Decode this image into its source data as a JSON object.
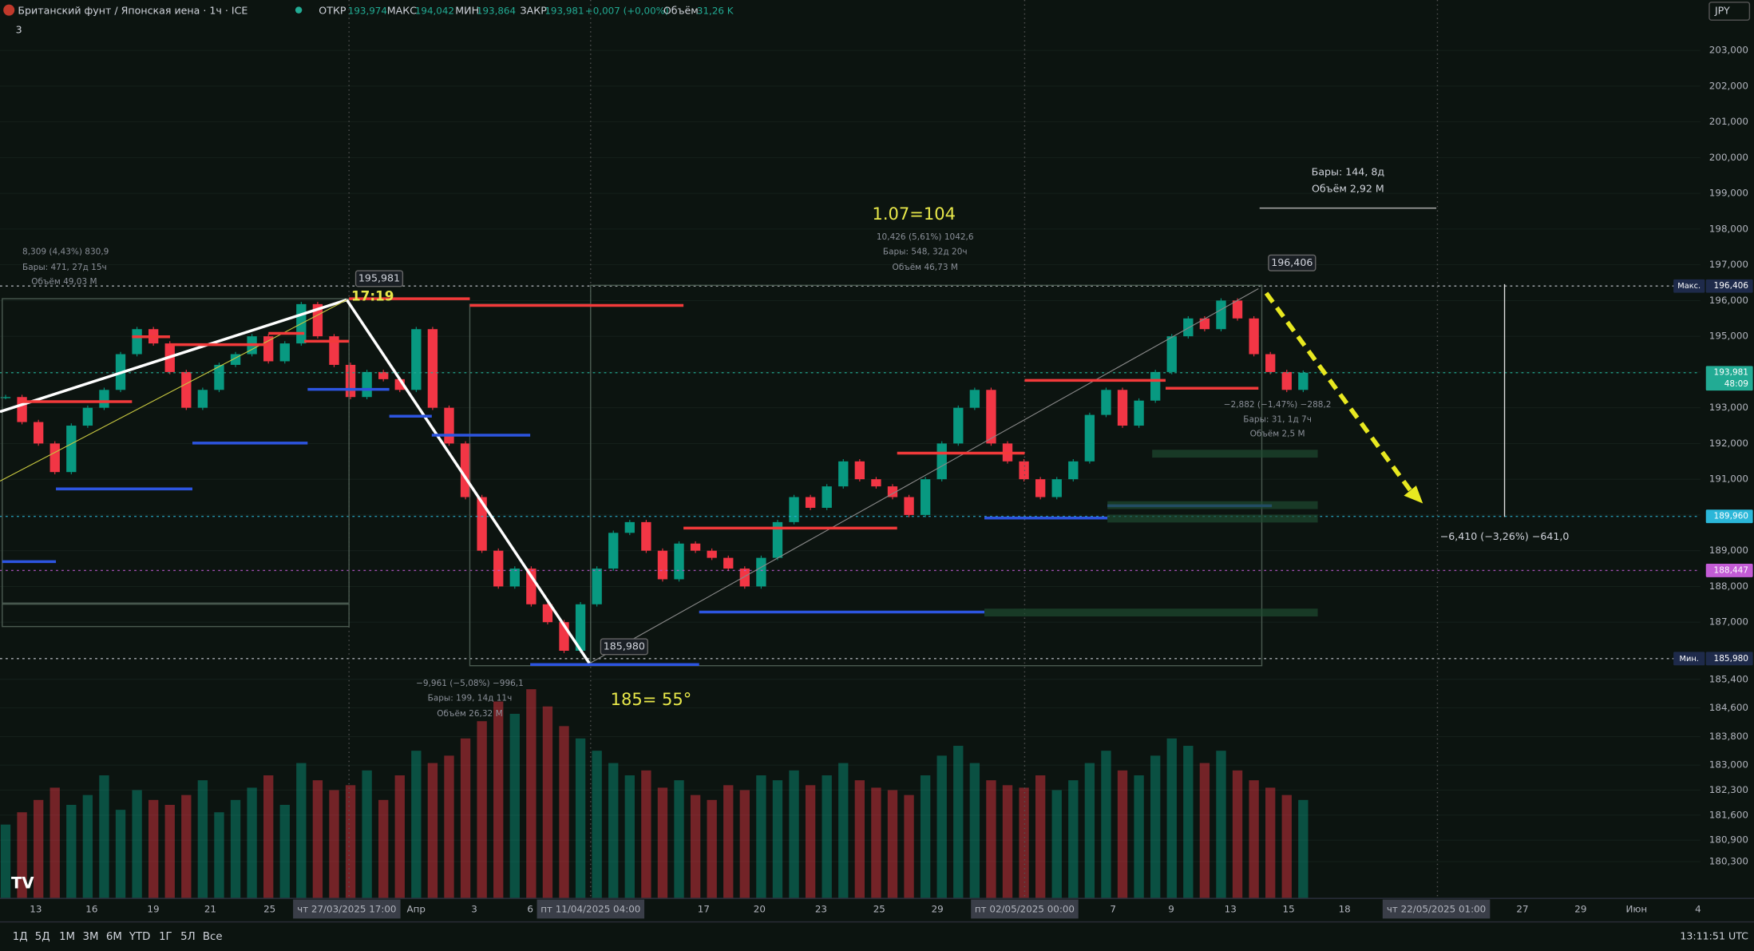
{
  "header": {
    "symbol": "Британский фунт / Японская иена · 1ч · ICE",
    "open_label": "ОТКР",
    "open": "193,974",
    "high_label": "МАКС",
    "high": "194,042",
    "low_label": "МИН",
    "low": "193,864",
    "close_label": "ЗАКР",
    "close": "193,981",
    "change": "+0,007 (+0,00%)",
    "volume_label": "Объём",
    "volume": "31,26 K",
    "indicators_count": "3",
    "currency": "JPY"
  },
  "chart_data": {
    "type": "candlestick",
    "closes": [
      193.3,
      192.6,
      192.0,
      191.2,
      192.5,
      193.0,
      193.5,
      194.5,
      195.2,
      194.8,
      194.0,
      193.0,
      193.5,
      194.2,
      194.5,
      195.0,
      194.3,
      194.8,
      195.9,
      195.0,
      194.2,
      193.3,
      194.0,
      193.8,
      193.5,
      195.2,
      193.0,
      192.0,
      190.5,
      189.0,
      188.0,
      188.5,
      187.5,
      187.0,
      186.2,
      187.5,
      188.5,
      189.5,
      189.8,
      189.0,
      188.2,
      189.2,
      189.0,
      188.8,
      188.5,
      188.0,
      188.8,
      189.8,
      190.5,
      190.2,
      190.8,
      191.5,
      191.0,
      190.8,
      190.5,
      190.0,
      191.0,
      192.0,
      193.0,
      193.5,
      192.0,
      191.5,
      191.0,
      190.5,
      191.0,
      191.5,
      192.8,
      193.5,
      192.5,
      193.2,
      194.0,
      195.0,
      195.5,
      195.2,
      196.0,
      195.5,
      194.5,
      194.0,
      193.5,
      193.981
    ],
    "volumes": [
      30,
      35,
      40,
      45,
      38,
      42,
      50,
      36,
      44,
      40,
      38,
      42,
      48,
      35,
      40,
      45,
      50,
      38,
      55,
      48,
      44,
      46,
      52,
      40,
      50,
      60,
      55,
      58,
      65,
      72,
      80,
      75,
      85,
      78,
      70,
      65,
      60,
      55,
      50,
      52,
      45,
      48,
      42,
      40,
      46,
      44,
      50,
      48,
      52,
      46,
      50,
      55,
      48,
      45,
      44,
      42,
      50,
      58,
      62,
      55,
      48,
      46,
      45,
      50,
      44,
      48,
      55,
      60,
      52,
      50,
      58,
      65,
      62,
      55,
      60,
      52,
      48,
      45,
      42,
      40
    ],
    "ylim": [
      179.27,
      204.41
    ],
    "volume_lim": [
      0,
      100
    ],
    "yticks": [
      {
        "value": 203,
        "label": "203,000"
      },
      {
        "value": 202,
        "label": "202,000"
      },
      {
        "value": 201,
        "label": "201,000"
      },
      {
        "value": 200,
        "label": "200,000"
      },
      {
        "value": 199,
        "label": "199,000"
      },
      {
        "value": 198,
        "label": "198,000"
      },
      {
        "value": 197,
        "label": "197,000"
      },
      {
        "value": 196,
        "label": "196,000"
      },
      {
        "value": 195,
        "label": "195,000"
      },
      {
        "value": 194,
        "label": "194,000"
      },
      {
        "value": 193,
        "label": "193,000"
      },
      {
        "value": 192,
        "label": "192,000"
      },
      {
        "value": 191,
        "label": "191,000"
      },
      {
        "value": 190,
        "label": "190,000"
      },
      {
        "value": 189,
        "label": "189,000"
      },
      {
        "value": 188,
        "label": "188,000"
      },
      {
        "value": 187,
        "label": "187,000"
      },
      {
        "value": 185.4,
        "label": "185,400"
      },
      {
        "value": 184.6,
        "label": "184,600"
      },
      {
        "value": 183.8,
        "label": "183,800"
      },
      {
        "value": 183,
        "label": "183,000"
      },
      {
        "value": 182.3,
        "label": "182,300"
      },
      {
        "value": 181.6,
        "label": "181,600"
      },
      {
        "value": 180.9,
        "label": "180,900"
      },
      {
        "value": 180.3,
        "label": "180,300"
      }
    ],
    "markers": [
      {
        "value": 196.406,
        "label": "196,406",
        "tag": "Макс.",
        "color": "#d1d4dc"
      },
      {
        "value": 193.981,
        "label": "193,981",
        "sub": "48:09",
        "color": "#22ab94"
      },
      {
        "value": 189.96,
        "label": "189,960",
        "color": "#2bb7d9"
      },
      {
        "value": 188.447,
        "label": "188,447",
        "color": "#c35cd6"
      },
      {
        "value": 185.98,
        "label": "185,980",
        "tag": "Мин.",
        "color": "#d1d4dc"
      }
    ],
    "time_axis": [
      "13",
      "16",
      "19",
      "21",
      "25",
      "чт 27/03/2025   17:00",
      "Апр",
      "3",
      "6",
      "пт 11/04/2025   04:00",
      "17",
      "20",
      "23",
      "25",
      "29",
      "пт 02/05/2025   00:00",
      "7",
      "9",
      "13",
      "15",
      "18",
      "чт 22/05/2025   01:00",
      "27",
      "29",
      "Июн",
      "4"
    ]
  },
  "annotations": {
    "fib": "1.07=104",
    "m1a": "10,426 (5,61%) 1042,6",
    "m1b": "Бары: 548, 32д 20ч",
    "m1c": "Объём 46,73 M",
    "m2a": "8,309 (4,43%) 830,9",
    "m2b": "Бары: 471, 27д 15ч",
    "m2c": "Объём 49,03 M",
    "high1": "195,981",
    "time1": "17:19",
    "low1": "185,980",
    "m3a": "−9,961 (−5,08%) −996,1",
    "m3b": "Бары: 199, 14д 11ч",
    "m3c": "Объём 26,32 M",
    "angle": "185= 55°",
    "high2": "196,406",
    "m4a": "Бары: 144, 8д",
    "m4b": "Объём 2,92 M",
    "m5a": "−2,882 (−1,47%) −288,2",
    "m5b": "Бары: 31, 1д 7ч",
    "m5c": "Объём 2,5 M",
    "target": "−6,410 (−3,26%) −641,0"
  },
  "toolbar": {
    "periods": [
      "1Д",
      "5Д",
      "1М",
      "3М",
      "6М",
      "YTD",
      "1Г",
      "5Л",
      "Все"
    ],
    "clock": "13:11:51 UTC"
  }
}
